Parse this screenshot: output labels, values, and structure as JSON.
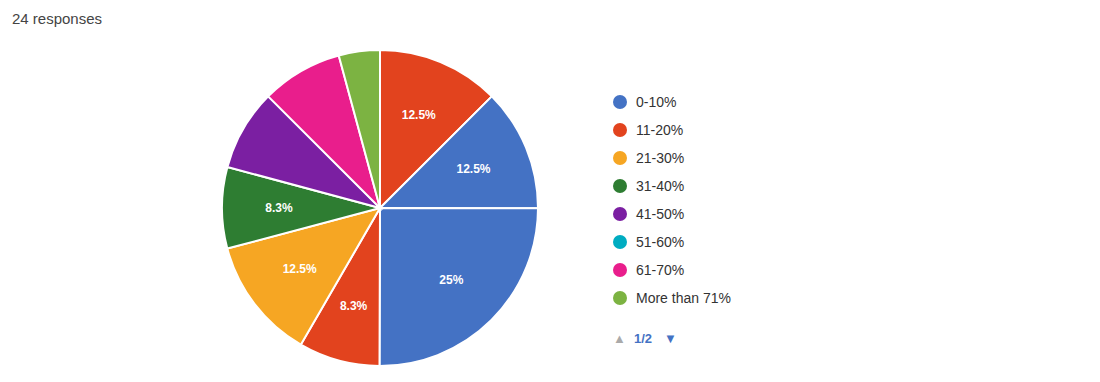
{
  "chart_data": {
    "type": "pie",
    "title": "24 responses",
    "values": [
      12.5,
      12.5,
      25.0,
      8.3,
      12.5,
      8.3,
      8.3,
      8.3,
      4.2
    ],
    "colors": [
      "#E2431E",
      "#4472C4",
      "#4472C4",
      "#E2431E",
      "#F6A623",
      "#2E7D32",
      "#7B1FA2",
      "#E91E8C",
      "#7CB342"
    ],
    "data_labels": true,
    "value_labels": [
      "12.5%",
      "12.5%",
      "25%",
      "8.3%",
      "12.5%",
      "8.3%",
      null,
      null,
      null
    ],
    "legend": "right",
    "legend_entries": [
      {
        "name": "0-10%",
        "color": "#4472C4"
      },
      {
        "name": "11-20%",
        "color": "#E2431E"
      },
      {
        "name": "21-30%",
        "color": "#F6A623"
      },
      {
        "name": "31-40%",
        "color": "#2E7D32"
      },
      {
        "name": "41-50%",
        "color": "#7B1FA2"
      },
      {
        "name": "51-60%",
        "color": "#00ACC1"
      },
      {
        "name": "61-70%",
        "color": "#E91E8C"
      },
      {
        "name": "More than 71%",
        "color": "#7CB342"
      }
    ],
    "annotations": [
      {
        "text": "▲",
        "color": "#AAAAAA"
      },
      {
        "text": "1/2",
        "color": "#4472C4"
      },
      {
        "text": "▼",
        "color": "#4472C4"
      }
    ]
  }
}
